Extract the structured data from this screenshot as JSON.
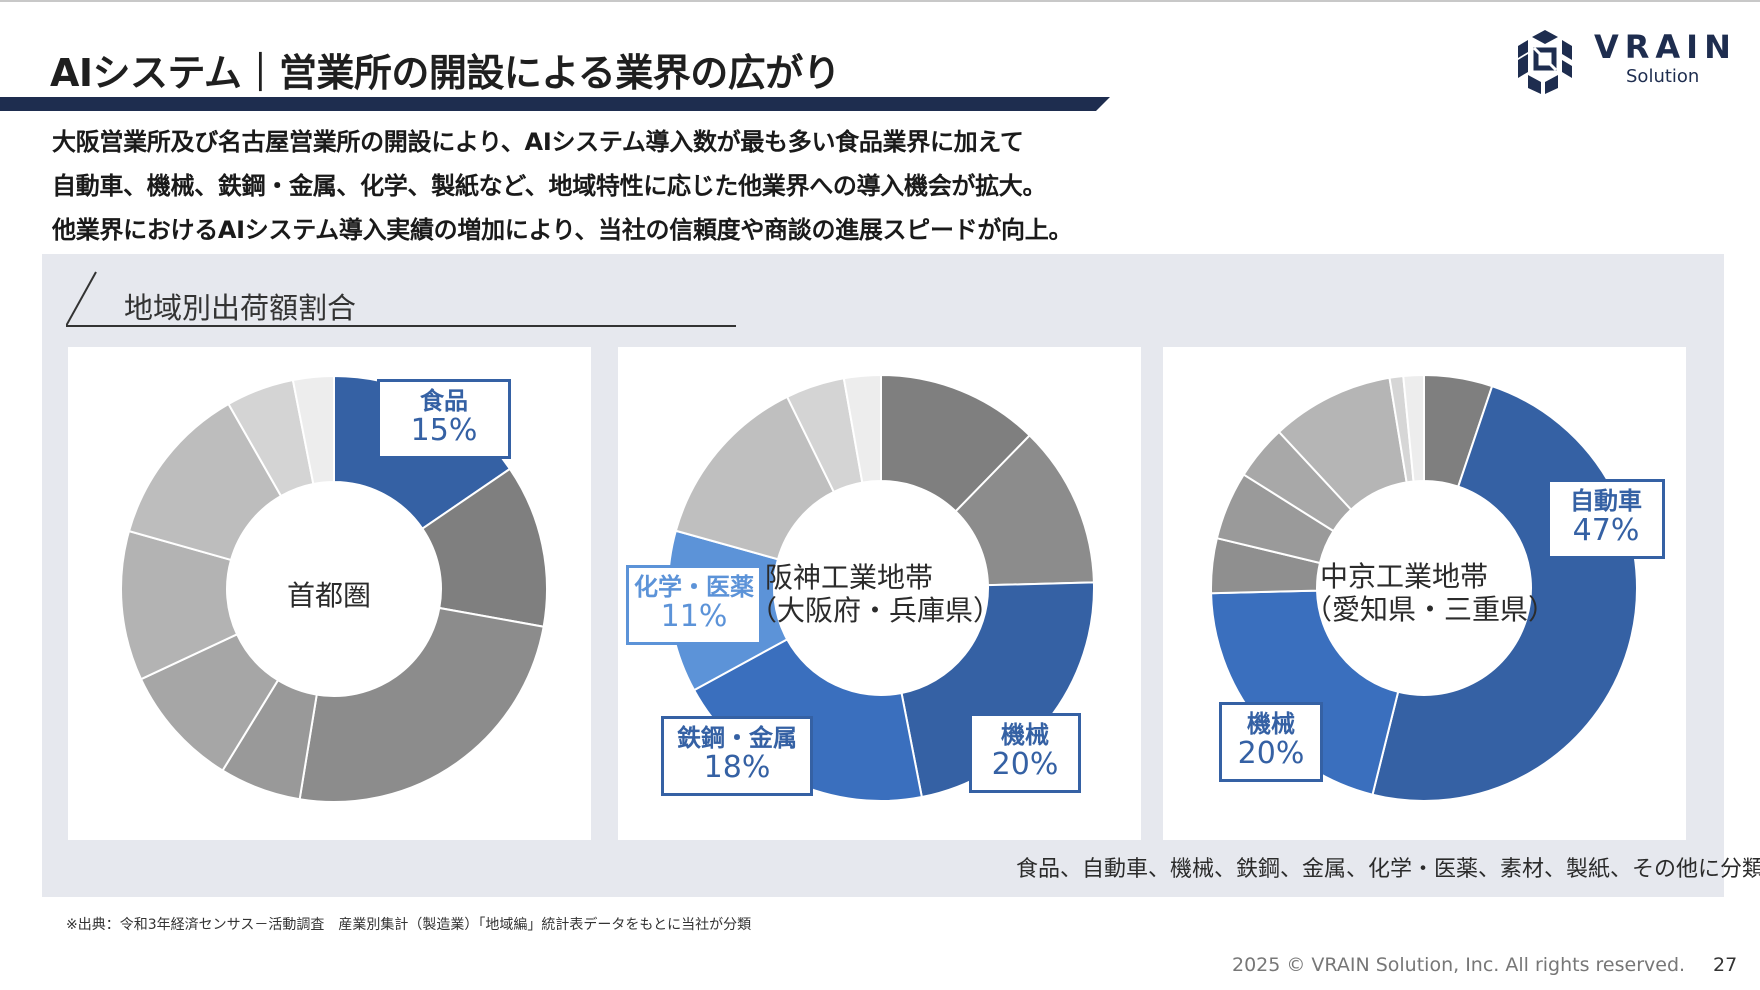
{
  "header": {
    "title": "AIシステム｜営業所の開設による業界の広がり"
  },
  "logo": {
    "word": "VRAIN",
    "sub": "Solution",
    "icon": "vrain-logo-icon",
    "color": "#1e2d4f"
  },
  "intro": {
    "lines": [
      "大阪営業所及び名古屋営業所の開設により、AIシステム導入数が最も多い食品業界に加えて",
      "自動車、機械、鉄鋼・金属、化学、製紙など、地域特性に応じた他業界への導入機会が拡大。",
      "他業界におけるAIシステム導入実績の増加により、当社の信頼度や商談の進展スピードが向上。"
    ]
  },
  "section": {
    "title": "地域別出荷額割合"
  },
  "colors": {
    "highlight_dark": "#3561a4",
    "highlight_mid": "#3a6fbe",
    "highlight_light": "#5c93d8",
    "panel": "#e6e8ee"
  },
  "chart_data": [
    {
      "type": "pie",
      "center_label": "首都圏",
      "slices": [
        {
          "value": 15,
          "highlight": true,
          "label": "食品",
          "value_label": "15%"
        },
        {
          "value": 12
        },
        {
          "value": 24
        },
        {
          "value": 6
        },
        {
          "value": 9
        },
        {
          "value": 11
        },
        {
          "value": 12
        },
        {
          "value": 5
        },
        {
          "value": 3
        }
      ]
    },
    {
      "type": "pie",
      "center_label_lines": [
        "阪神工業地帯",
        "（大阪府・兵庫県）"
      ],
      "slices": [
        {
          "value": 11
        },
        {
          "value": 11
        },
        {
          "value": 20,
          "highlight": true,
          "label": "機械",
          "value_label": "20%"
        },
        {
          "value": 18,
          "highlight": true,
          "label": "鉄鋼・金属",
          "value_label": "18%"
        },
        {
          "value": 11,
          "highlight": true,
          "label": "化学・医薬",
          "value_label": "11%"
        },
        {
          "value": 12
        },
        {
          "value": 4
        },
        {
          "value": 2.5
        }
      ]
    },
    {
      "type": "pie",
      "center_label_lines": [
        "中京工業地帯",
        "（愛知県・三重県）"
      ],
      "slices": [
        {
          "value": 5
        },
        {
          "value": 47,
          "highlight": true,
          "label": "自動車",
          "value_label": "47%"
        },
        {
          "value": 20,
          "highlight": true,
          "label": "機械",
          "value_label": "20%"
        },
        {
          "value": 4
        },
        {
          "value": 5
        },
        {
          "value": 4
        },
        {
          "value": 9
        },
        {
          "value": 1
        },
        {
          "value": 1.5
        }
      ]
    }
  ],
  "note": "食品、自動車、機械、鉄鋼、金属、化学・医薬、素材、製紙、その他に分類",
  "footer": {
    "source": "※出典：令和3年経済センサス－活動調査　産業別集計（製造業）「地域編」統計表データをもとに当社が分類",
    "copyright": "2025 © VRAIN Solution, Inc. All rights reserved.",
    "page": "27"
  }
}
